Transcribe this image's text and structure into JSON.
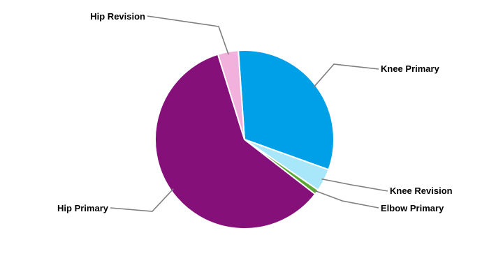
{
  "chart_data": {
    "type": "pie",
    "slices": [
      {
        "label": "Knee Primary",
        "value": 31.6,
        "color": "#00a0e8"
      },
      {
        "label": "Knee Revision",
        "value": 4.1,
        "color": "#a8e6fa"
      },
      {
        "label": "Elbow Primary",
        "value": 0.9,
        "color": "#5aa832"
      },
      {
        "label": "Hip Primary",
        "value": 59.7,
        "color": "#85107a"
      },
      {
        "label": "Hip Revision",
        "value": 3.7,
        "color": "#f2b0dc"
      }
    ],
    "legend": "none"
  }
}
